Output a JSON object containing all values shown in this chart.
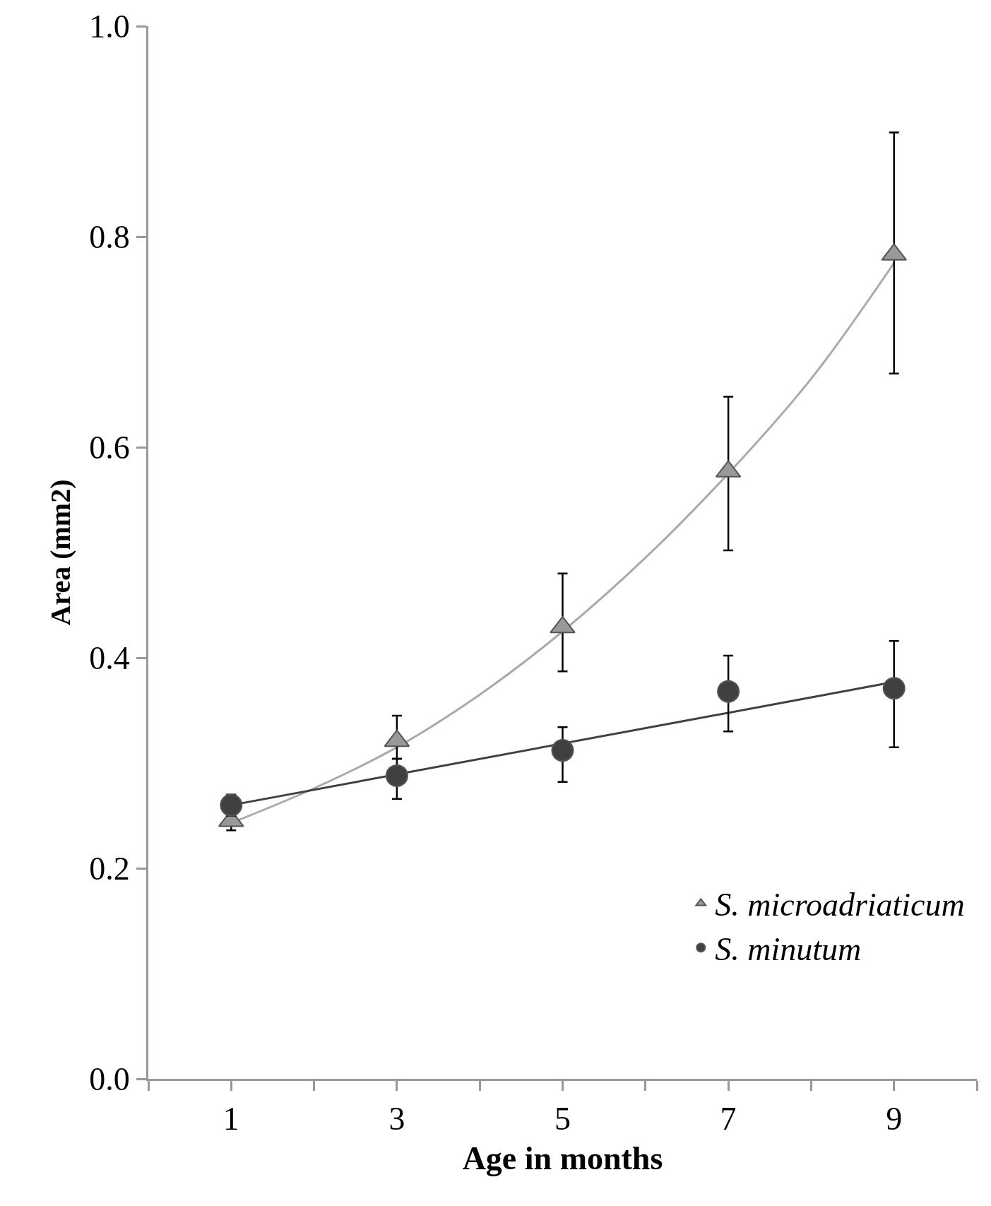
{
  "chart_data": {
    "type": "scatter",
    "xlabel": "Age in months",
    "ylabel": "Area (mm2)",
    "x": [
      1,
      3,
      5,
      7,
      9
    ],
    "xlim": [
      0,
      10
    ],
    "xticks": [
      {
        "value": 0,
        "label": null
      },
      {
        "value": 1,
        "label": "1"
      },
      {
        "value": 2,
        "label": null
      },
      {
        "value": 3,
        "label": "3"
      },
      {
        "value": 4,
        "label": null
      },
      {
        "value": 5,
        "label": "5"
      },
      {
        "value": 6,
        "label": null
      },
      {
        "value": 7,
        "label": "7"
      },
      {
        "value": 8,
        "label": null
      },
      {
        "value": 9,
        "label": "9"
      },
      {
        "value": 10,
        "label": null
      }
    ],
    "ylim": [
      0,
      1
    ],
    "yticks": [
      {
        "value": 0,
        "label": "0.0"
      },
      {
        "value": 0.2,
        "label": "0.2"
      },
      {
        "value": 0.4,
        "label": "0.4"
      },
      {
        "value": 0.6,
        "label": "0.6"
      },
      {
        "value": 0.8,
        "label": "0.8"
      },
      {
        "value": 1,
        "label": "1.0"
      }
    ],
    "legend": "bottom right",
    "series": [
      {
        "name": "S. microadriaticum",
        "color": "#999999",
        "marker": "triangle",
        "values": [
          0.245,
          0.321,
          0.429,
          0.577,
          0.783
        ],
        "errors": [
          [
            0.236,
            0.252
          ],
          [
            0.304,
            0.345
          ],
          [
            0.387,
            0.48
          ],
          [
            0.502,
            0.648
          ],
          [
            0.67,
            0.899
          ]
        ]
      },
      {
        "name": "S. minutum",
        "color": "#404040",
        "marker": "circle",
        "values": [
          0.26,
          0.288,
          0.312,
          0.368,
          0.371
        ],
        "errors": [
          [
            0.25,
            0.27
          ],
          [
            0.266,
            0.304
          ],
          [
            0.282,
            0.334
          ],
          [
            0.33,
            0.402
          ],
          [
            0.315,
            0.416
          ]
        ]
      },
      {
        "type": "line",
        "color": "#aaaaaa",
        "x": [
          1,
          2,
          3,
          4,
          5,
          6,
          7,
          8,
          9
        ],
        "values": [
          0.243,
          0.276,
          0.315,
          0.365,
          0.425,
          0.495,
          0.575,
          0.665,
          0.775
        ]
      },
      {
        "type": "line",
        "color": "#404040",
        "x": [
          1,
          9
        ],
        "values": [
          0.26,
          0.377
        ]
      }
    ]
  }
}
